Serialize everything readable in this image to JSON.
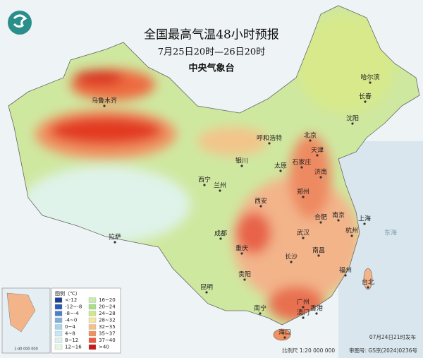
{
  "header": {
    "title": "全国最高气温48小时预报",
    "subtitle": "7月25日20时—26日20时",
    "agency": "中央气象台"
  },
  "legend": {
    "title": "图例（℃）",
    "items": [
      {
        "label": "<-12",
        "color": "#1a3f8f"
      },
      {
        "label": "-12~-8",
        "color": "#2a5bb0"
      },
      {
        "label": "-8~-4",
        "color": "#4a80c8"
      },
      {
        "label": "-4~0",
        "color": "#7fb0dc"
      },
      {
        "label": "0~4",
        "color": "#a8d4ec"
      },
      {
        "label": "4~8",
        "color": "#c7e8f2"
      },
      {
        "label": "8~12",
        "color": "#d9f2ef"
      },
      {
        "label": "12~16",
        "color": "#e6f7e0"
      },
      {
        "label": "16~20",
        "color": "#c8ecb0"
      },
      {
        "label": "20~24",
        "color": "#a9de8a"
      },
      {
        "label": "24~28",
        "color": "#d0e88a"
      },
      {
        "label": "28~32",
        "color": "#f4e6a0"
      },
      {
        "label": "32~35",
        "color": "#f6c08a"
      },
      {
        "label": "35~37",
        "color": "#f19060"
      },
      {
        "label": "37~40",
        "color": "#e75a3a"
      },
      {
        "label": ">40",
        "color": "#c6191b"
      }
    ]
  },
  "cities": [
    "乌鲁木齐",
    "哈尔滨",
    "长春",
    "沈阳",
    "呼和浩特",
    "北京",
    "天津",
    "石家庄",
    "太原",
    "银川",
    "济南",
    "西宁",
    "兰州",
    "郑州",
    "西安",
    "合肥",
    "南京",
    "上海",
    "成都",
    "武汉",
    "杭州",
    "重庆",
    "南昌",
    "长沙",
    "拉萨",
    "贵阳",
    "福州",
    "台北",
    "昆明",
    "广州",
    "南宁",
    "澳门",
    "香港",
    "海口"
  ],
  "seas": [
    "东海"
  ],
  "inset": {
    "scale": "1:40 000 000"
  },
  "footer": {
    "issued": "07月24日21时发布",
    "scale": "比例尺 1:20 000 000",
    "review": "审图号: GS京(2024)0236号"
  }
}
